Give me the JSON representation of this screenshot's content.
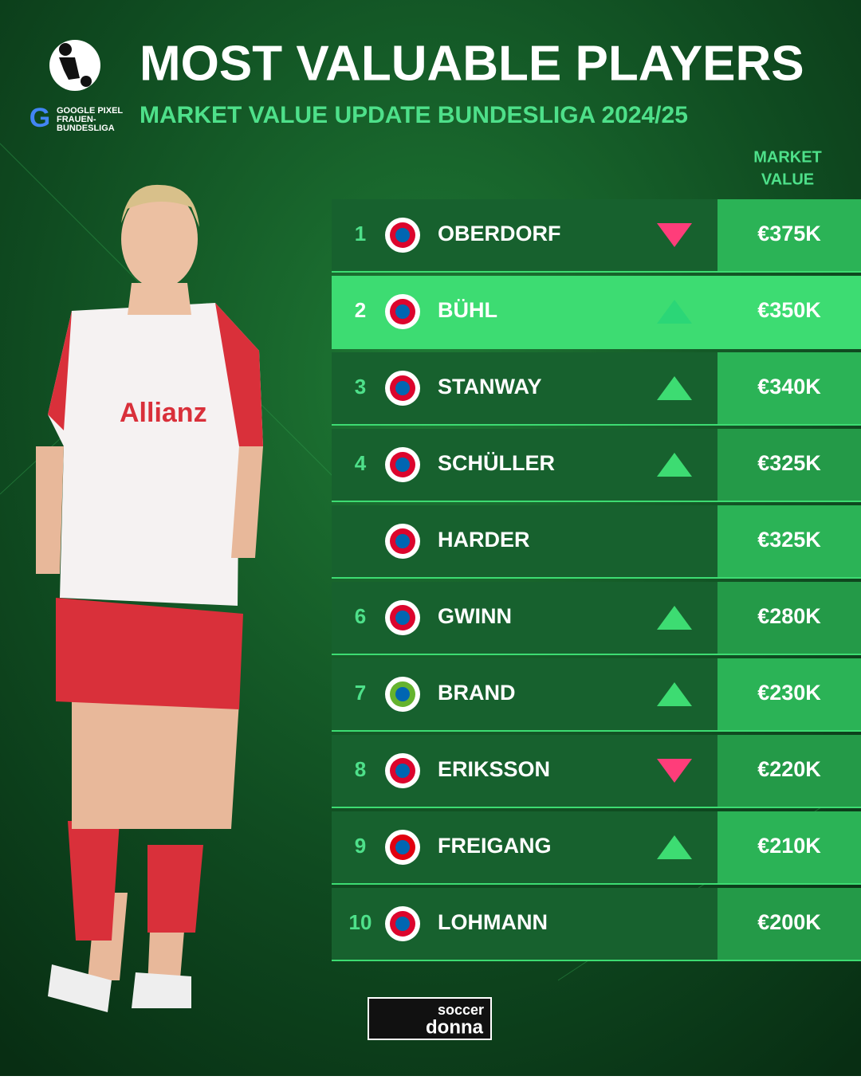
{
  "header": {
    "title": "MOST VALUABLE PLAYERS",
    "subtitle": "MARKET VALUE UPDATE BUNDESLIGA 2024/25",
    "league_lines": [
      "GOOGLE PIXEL",
      "FRAUEN-",
      "BUNDESLIGA"
    ]
  },
  "table": {
    "column_header": [
      "MARKET",
      "VALUE"
    ],
    "rows": [
      {
        "rank": "1",
        "name": "OBERDORF",
        "value": "€375K",
        "trend": "down",
        "logo": "#dc052d",
        "highlight": false
      },
      {
        "rank": "2",
        "name": "BÜHL",
        "value": "€350K",
        "trend": "up",
        "logo": "#dc052d",
        "highlight": true
      },
      {
        "rank": "3",
        "name": "STANWAY",
        "value": "€340K",
        "trend": "up",
        "logo": "#dc052d",
        "highlight": false
      },
      {
        "rank": "4",
        "name": "SCHÜLLER",
        "value": "€325K",
        "trend": "up",
        "logo": "#dc052d",
        "highlight": false
      },
      {
        "rank": null,
        "name": "HARDER",
        "value": "€325K",
        "trend": null,
        "logo": "#dc052d",
        "highlight": false
      },
      {
        "rank": "6",
        "name": "GWINN",
        "value": "€280K",
        "trend": "up",
        "logo": "#dc052d",
        "highlight": false
      },
      {
        "rank": "7",
        "name": "BRAND",
        "value": "€230K",
        "trend": "up",
        "logo": "#65b32e",
        "highlight": false
      },
      {
        "rank": "8",
        "name": "ERIKSSON",
        "value": "€220K",
        "trend": "down",
        "logo": "#dc052d",
        "highlight": false
      },
      {
        "rank": "9",
        "name": "FREIGANG",
        "value": "€210K",
        "trend": "up",
        "logo": "#e1000f",
        "highlight": false
      },
      {
        "rank": "10",
        "name": "LOHMANN",
        "value": "€200K",
        "trend": null,
        "logo": "#dc052d",
        "highlight": false
      }
    ]
  },
  "footer": {
    "brand_lines": [
      "soccer",
      "donna"
    ]
  }
}
